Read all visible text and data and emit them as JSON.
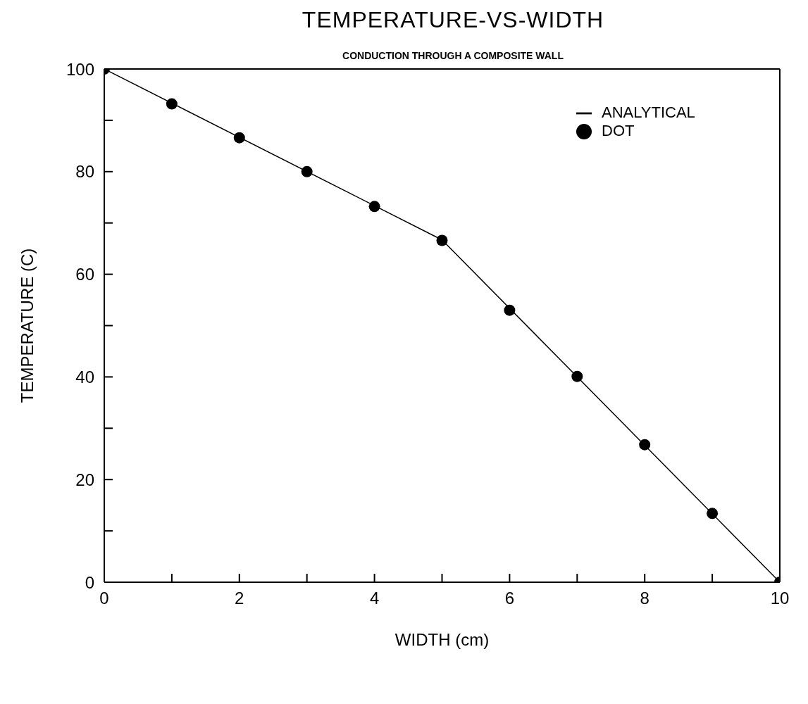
{
  "chart_data": {
    "type": "line",
    "title": "TEMPERATURE-VS-WIDTH",
    "subtitle": "CONDUCTION THROUGH A COMPOSITE WALL",
    "xlabel": "WIDTH (cm)",
    "ylabel": "TEMPERATURE (C)",
    "series": [
      {
        "name": "ANALYTICAL",
        "color": "#000000",
        "marker": "none",
        "x": [
          0,
          5,
          10
        ],
        "values": [
          100,
          66.7,
          0
        ]
      },
      {
        "name": "DOT",
        "type": "scatter",
        "color": "#000000",
        "marker": "circle",
        "x": [
          0,
          1,
          2,
          3,
          4,
          5,
          6,
          7,
          8,
          9,
          10
        ],
        "values": [
          100,
          93.2,
          86.6,
          80.0,
          73.2,
          66.6,
          53.0,
          40.1,
          26.8,
          13.4,
          0
        ]
      }
    ],
    "xlim": [
      0,
      10
    ],
    "ylim": [
      0,
      100
    ],
    "xticks": [
      0,
      {
        "value": 1,
        "label": null
      },
      2,
      {
        "value": 3,
        "label": null
      },
      4,
      {
        "value": 5,
        "label": null
      },
      6,
      {
        "value": 7,
        "label": null
      },
      8,
      {
        "value": 9,
        "label": null
      },
      10
    ],
    "yticks": [
      0,
      {
        "value": 10,
        "label": null
      },
      20,
      {
        "value": 30,
        "label": null
      },
      40,
      {
        "value": 50,
        "label": null
      },
      60,
      {
        "value": 70,
        "label": null
      },
      80,
      {
        "value": 90,
        "label": null
      },
      100
    ],
    "grid": false,
    "legend": "top right"
  }
}
